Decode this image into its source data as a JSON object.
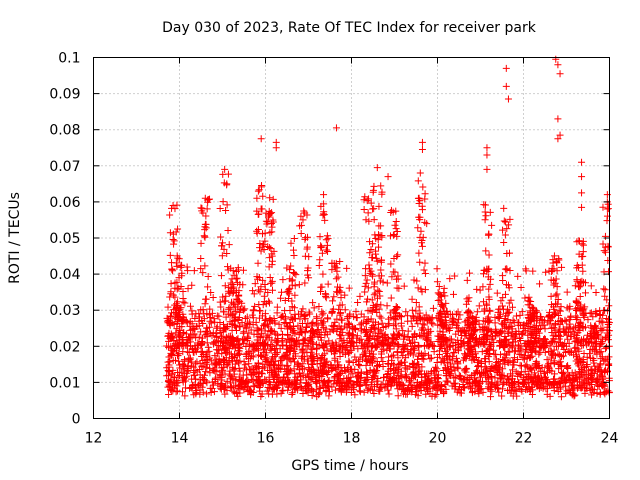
{
  "chart_data": {
    "type": "scatter",
    "title": "Day 030 of 2023, Rate Of TEC Index for receiver park",
    "xlabel": "GPS time / hours",
    "ylabel": "ROTI / TECUs",
    "xlim": [
      12,
      24
    ],
    "ylim": [
      0,
      0.1
    ],
    "x_ticks": [
      "12",
      "14",
      "16",
      "18",
      "20",
      "22",
      "24"
    ],
    "y_ticks": [
      "0",
      "0.01",
      "0.02",
      "0.03",
      "0.04",
      "0.05",
      "0.06",
      "0.07",
      "0.08",
      "0.09",
      "0.1"
    ],
    "grid": true,
    "marker": "+",
    "color": "#ff0000",
    "data_start_hour": 13.7,
    "data_end_hour": 24.0,
    "baseline_band": [
      0.006,
      0.028
    ],
    "notable_points": [
      {
        "x": 15.9,
        "y": 0.0775
      },
      {
        "x": 16.25,
        "y": 0.0765
      },
      {
        "x": 16.25,
        "y": 0.075
      },
      {
        "x": 17.65,
        "y": 0.0805
      },
      {
        "x": 19.65,
        "y": 0.0765
      },
      {
        "x": 19.65,
        "y": 0.0745
      },
      {
        "x": 21.15,
        "y": 0.075
      },
      {
        "x": 21.15,
        "y": 0.073
      },
      {
        "x": 21.15,
        "y": 0.069
      },
      {
        "x": 21.6,
        "y": 0.097
      },
      {
        "x": 21.6,
        "y": 0.092
      },
      {
        "x": 21.65,
        "y": 0.0885
      },
      {
        "x": 22.75,
        "y": 0.0995
      },
      {
        "x": 22.8,
        "y": 0.098
      },
      {
        "x": 22.85,
        "y": 0.0955
      },
      {
        "x": 22.8,
        "y": 0.083
      },
      {
        "x": 22.8,
        "y": 0.0775
      },
      {
        "x": 22.85,
        "y": 0.0785
      },
      {
        "x": 23.35,
        "y": 0.071
      },
      {
        "x": 23.35,
        "y": 0.067
      },
      {
        "x": 23.35,
        "y": 0.0625
      },
      {
        "x": 23.35,
        "y": 0.0585
      },
      {
        "x": 15.05,
        "y": 0.069
      },
      {
        "x": 15.1,
        "y": 0.065
      },
      {
        "x": 18.6,
        "y": 0.0695
      },
      {
        "x": 18.85,
        "y": 0.067
      },
      {
        "x": 19.6,
        "y": 0.068
      },
      {
        "x": 23.95,
        "y": 0.062
      },
      {
        "x": 23.95,
        "y": 0.06
      },
      {
        "x": 13.85,
        "y": 0.059
      },
      {
        "x": 14.6,
        "y": 0.061
      },
      {
        "x": 17.35,
        "y": 0.062
      }
    ],
    "spikes": [
      {
        "x": 13.85,
        "peak": 0.06
      },
      {
        "x": 14.0,
        "peak": 0.045
      },
      {
        "x": 14.6,
        "peak": 0.061
      },
      {
        "x": 15.05,
        "peak": 0.069
      },
      {
        "x": 15.3,
        "peak": 0.042
      },
      {
        "x": 15.9,
        "peak": 0.065
      },
      {
        "x": 16.1,
        "peak": 0.062
      },
      {
        "x": 16.6,
        "peak": 0.05
      },
      {
        "x": 16.9,
        "peak": 0.058
      },
      {
        "x": 17.35,
        "peak": 0.062
      },
      {
        "x": 17.65,
        "peak": 0.045
      },
      {
        "x": 18.4,
        "peak": 0.062
      },
      {
        "x": 18.6,
        "peak": 0.069
      },
      {
        "x": 19.0,
        "peak": 0.06
      },
      {
        "x": 19.65,
        "peak": 0.068
      },
      {
        "x": 20.1,
        "peak": 0.035
      },
      {
        "x": 20.8,
        "peak": 0.03
      },
      {
        "x": 21.15,
        "peak": 0.06
      },
      {
        "x": 21.6,
        "peak": 0.062
      },
      {
        "x": 22.2,
        "peak": 0.033
      },
      {
        "x": 22.75,
        "peak": 0.046
      },
      {
        "x": 23.3,
        "peak": 0.05
      },
      {
        "x": 23.95,
        "peak": 0.06
      }
    ]
  }
}
